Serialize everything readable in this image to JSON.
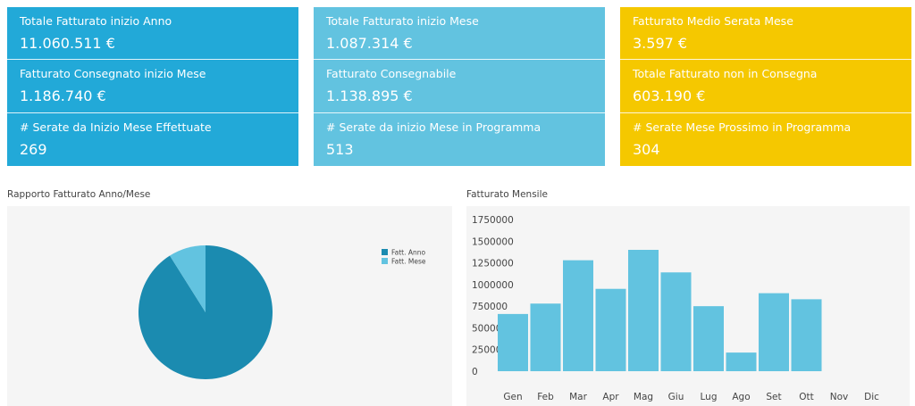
{
  "cards": [
    {
      "color": "#22a9d8",
      "items": [
        {
          "label": "Totale Fatturato inizio Anno",
          "value": "11.060.511 €"
        },
        {
          "label": "Fatturato Consegnato inizio Mese",
          "value": "1.186.740 €"
        },
        {
          "label": "# Serate da Inizio Mese Effettuate",
          "value": "269"
        }
      ]
    },
    {
      "color": "#62c3e0",
      "items": [
        {
          "label": "Totale Fatturato inizio Mese",
          "value": "1.087.314 €"
        },
        {
          "label": "Fatturato Consegnabile",
          "value": "1.138.895 €"
        },
        {
          "label": "# Serate da inizio Mese in Programma",
          "value": "513"
        }
      ]
    },
    {
      "color": "#f5c800",
      "items": [
        {
          "label": "Fatturato Medio Serata Mese",
          "value": "3.597 €"
        },
        {
          "label": "Totale Fatturato non in Consegna",
          "value": "603.190 €"
        },
        {
          "label": "# Serate Mese Prossimo in Programma",
          "value": "304"
        }
      ]
    }
  ],
  "charts": {
    "pie_title": "Rapporto Fatturato Anno/Mese",
    "bar_title": "Fatturato Mensile"
  },
  "chart_data": [
    {
      "type": "pie",
      "title": "Rapporto Fatturato Anno/Mese",
      "labels": [
        "Fatt. Anno",
        "Fatt. Mese"
      ],
      "values": [
        11060511,
        1087314
      ],
      "colors": [
        "#1b8bb0",
        "#62c3e0"
      ],
      "legend": "top-right"
    },
    {
      "type": "bar",
      "title": "Fatturato Mensile",
      "categories": [
        "Gen",
        "Feb",
        "Mar",
        "Apr",
        "Mag",
        "Giu",
        "Lug",
        "Ago",
        "Set",
        "Ott",
        "Nov",
        "Dic"
      ],
      "values": [
        660000,
        780000,
        1280000,
        950000,
        1400000,
        1140000,
        750000,
        215000,
        900000,
        830000,
        0,
        0
      ],
      "ylim": [
        0,
        1750000
      ],
      "yticks": [
        0,
        250000,
        500000,
        750000,
        1000000,
        1250000,
        1500000,
        1750000
      ],
      "bar_color": "#62c3e0",
      "grid": false
    }
  ]
}
